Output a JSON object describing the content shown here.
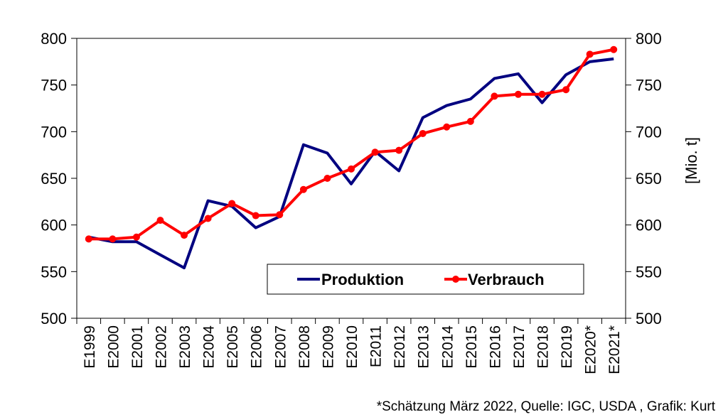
{
  "chart_data": {
    "type": "line",
    "categories": [
      "E1999",
      "E2000",
      "E2001",
      "E2002",
      "E2003",
      "E2004",
      "E2005",
      "E2006",
      "E2007",
      "E2008",
      "E2009",
      "E2010",
      "E2011",
      "E2012",
      "E2013",
      "E2014",
      "E2015",
      "E2016",
      "E2017",
      "E2018",
      "E2019",
      "E2020*",
      "E2021*"
    ],
    "series": [
      {
        "name": "Produktion",
        "color": "#000080",
        "values": [
          587,
          582,
          582,
          568,
          554,
          626,
          620,
          597,
          609,
          686,
          677,
          644,
          679,
          658,
          715,
          728,
          735,
          757,
          762,
          731,
          761,
          775,
          778
        ]
      },
      {
        "name": "Verbrauch",
        "color": "#ff0000",
        "values": [
          585,
          585,
          587,
          605,
          589,
          607,
          623,
          610,
          611,
          638,
          650,
          660,
          678,
          680,
          698,
          705,
          711,
          738,
          740,
          740,
          745,
          783,
          788
        ]
      }
    ],
    "ylim": [
      500,
      800
    ],
    "yticks": [
      "500",
      "550",
      "600",
      "650",
      "700",
      "750",
      "800"
    ],
    "y2label": "[Mio. t]",
    "legend_position": "bottom-right",
    "note": "*Schätzung März 2022, Quelle: IGC, USDA , Grafik: Kurt"
  }
}
